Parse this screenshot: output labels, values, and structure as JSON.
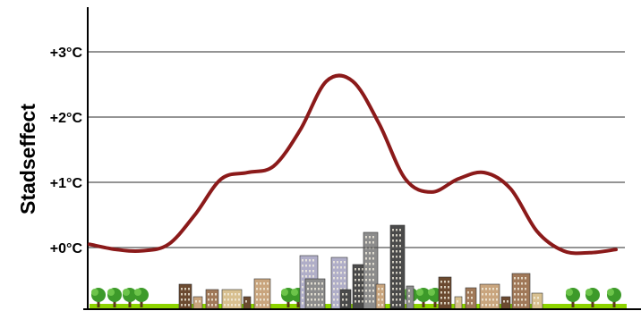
{
  "chart_data": {
    "type": "line",
    "title": "",
    "xlabel": "",
    "ylabel": "Stadseffect",
    "ylim": [
      -0.9,
      4.2
    ],
    "y_ticks": [
      {
        "value": 0,
        "label": "+0°C"
      },
      {
        "value": 1,
        "label": "+1°C"
      },
      {
        "value": 2,
        "label": "+2°C"
      },
      {
        "value": 3,
        "label": "+3°C"
      }
    ],
    "grid": true,
    "legend": "none",
    "line_color": "#8b1a1a",
    "x_description": "transect from countryside through suburbs and city centre back to countryside",
    "series": [
      {
        "values": [
          0.05,
          -0.03,
          -0.05,
          0.05,
          0.5,
          1.05,
          1.15,
          1.25,
          1.8,
          2.55,
          2.55,
          1.9,
          1.05,
          0.85,
          1.05,
          1.15,
          0.9,
          0.25,
          -0.05,
          -0.08,
          -0.03
        ]
      }
    ],
    "scenery": {
      "tree_color": "#3d9a2a",
      "grass_color": "#8dd400",
      "building_colors": [
        "#6b4a30",
        "#a07858",
        "#c9a57e",
        "#8c8c8c",
        "#b0aec8",
        "#4a4a4a",
        "#d8c090"
      ]
    }
  }
}
